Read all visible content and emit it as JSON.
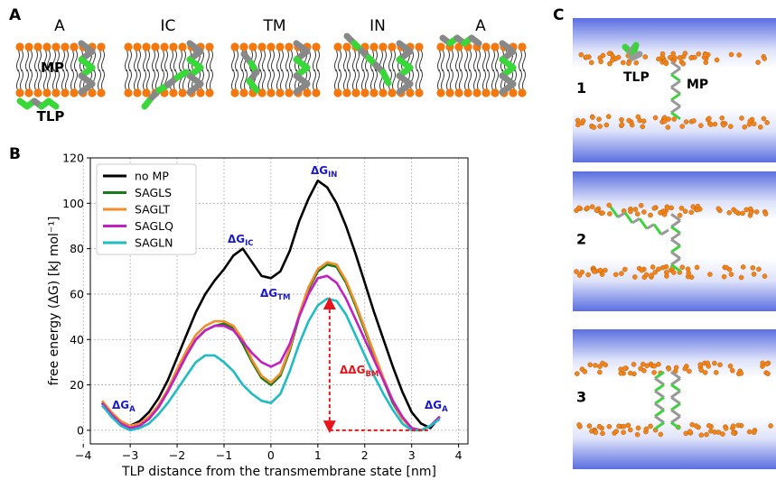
{
  "panels": {
    "a": {
      "label": "A",
      "states": [
        "A",
        "IC",
        "TM",
        "IN",
        "A"
      ],
      "mp": "MP",
      "tlp": "TLP"
    },
    "b": {
      "label": "B"
    },
    "c": {
      "label": "C",
      "snapshots": [
        "1",
        "2",
        "3"
      ],
      "tlp": "TLP",
      "mp": "MP"
    }
  },
  "chart_data": {
    "type": "line",
    "xlabel": "TLP distance from the transmembrane state [nm]",
    "ylabel": "free energy (ΔG) [kJ mol⁻¹]",
    "xlim": [
      -3.85,
      4.2
    ],
    "ylim": [
      -6,
      120
    ],
    "xticks": [
      {
        "value": -4,
        "label": "−4"
      },
      {
        "value": -3,
        "label": "−3"
      },
      {
        "value": -2,
        "label": "−2"
      },
      {
        "value": -1,
        "label": "−1"
      },
      0,
      1,
      2,
      3,
      4
    ],
    "yticks": [
      0,
      20,
      40,
      60,
      80,
      100,
      120
    ],
    "grid": true,
    "legend": "upper left",
    "x": [
      -3.6,
      -3.4,
      -3.2,
      -3.0,
      -2.8,
      -2.6,
      -2.4,
      -2.2,
      -2.0,
      -1.8,
      -1.6,
      -1.4,
      -1.2,
      -1.0,
      -0.8,
      -0.6,
      -0.4,
      -0.2,
      0,
      0.2,
      0.4,
      0.6,
      0.8,
      1.0,
      1.2,
      1.4,
      1.6,
      1.8,
      2.0,
      2.2,
      2.4,
      2.6,
      2.8,
      3.0,
      3.2,
      3.4,
      3.6
    ],
    "series": [
      {
        "name": "no MP",
        "color": "#000000",
        "values": [
          12,
          6,
          3,
          2,
          4,
          8,
          14,
          22,
          32,
          42,
          52,
          60,
          66,
          71,
          77,
          80,
          74,
          68,
          67,
          70,
          79,
          92,
          102,
          110,
          107,
          100,
          90,
          78,
          65,
          52,
          40,
          28,
          17,
          8,
          3,
          1,
          6
        ]
      },
      {
        "name": "SAGLS",
        "color": "#1a7a1a",
        "values": [
          12,
          7,
          3,
          1,
          2,
          5,
          10,
          17,
          25,
          33,
          40,
          44,
          46,
          47,
          45,
          38,
          30,
          23,
          20,
          24,
          35,
          50,
          62,
          70,
          73,
          72,
          65,
          55,
          44,
          33,
          22,
          12,
          5,
          1,
          0,
          2,
          6
        ]
      },
      {
        "name": "SAGLT",
        "color": "#f28e2b",
        "values": [
          13,
          8,
          4,
          2,
          3,
          6,
          11,
          18,
          27,
          35,
          42,
          46,
          48,
          48,
          46,
          40,
          31,
          24,
          21,
          25,
          36,
          51,
          63,
          71,
          74,
          73,
          66,
          56,
          45,
          34,
          23,
          13,
          5,
          1,
          0,
          2,
          6
        ]
      },
      {
        "name": "SAGLQ",
        "color": "#c41fc4",
        "values": [
          12,
          7,
          3,
          1,
          2,
          5,
          10,
          17,
          25,
          33,
          40,
          44,
          46,
          46,
          44,
          39,
          34,
          30,
          28,
          30,
          38,
          50,
          60,
          67,
          68,
          65,
          58,
          49,
          40,
          31,
          22,
          13,
          6,
          1,
          0,
          2,
          6
        ]
      },
      {
        "name": "SAGLN",
        "color": "#1fbcc4",
        "values": [
          11,
          6,
          2,
          0,
          1,
          3,
          7,
          12,
          18,
          24,
          30,
          33,
          33,
          30,
          26,
          20,
          16,
          13,
          12,
          16,
          26,
          38,
          48,
          55,
          58,
          57,
          51,
          42,
          33,
          24,
          16,
          9,
          3,
          0,
          0,
          2,
          5
        ]
      }
    ],
    "annotations": [
      {
        "text": "ΔG",
        "sub": "A"
      },
      {
        "text": "ΔG",
        "sub": "IC"
      },
      {
        "text": "ΔG",
        "sub": "TM"
      },
      {
        "text": "ΔG",
        "sub": "IN"
      },
      {
        "text": "ΔΔG",
        "sub": "BM"
      },
      {
        "text": "ΔG",
        "sub": "A"
      }
    ]
  }
}
